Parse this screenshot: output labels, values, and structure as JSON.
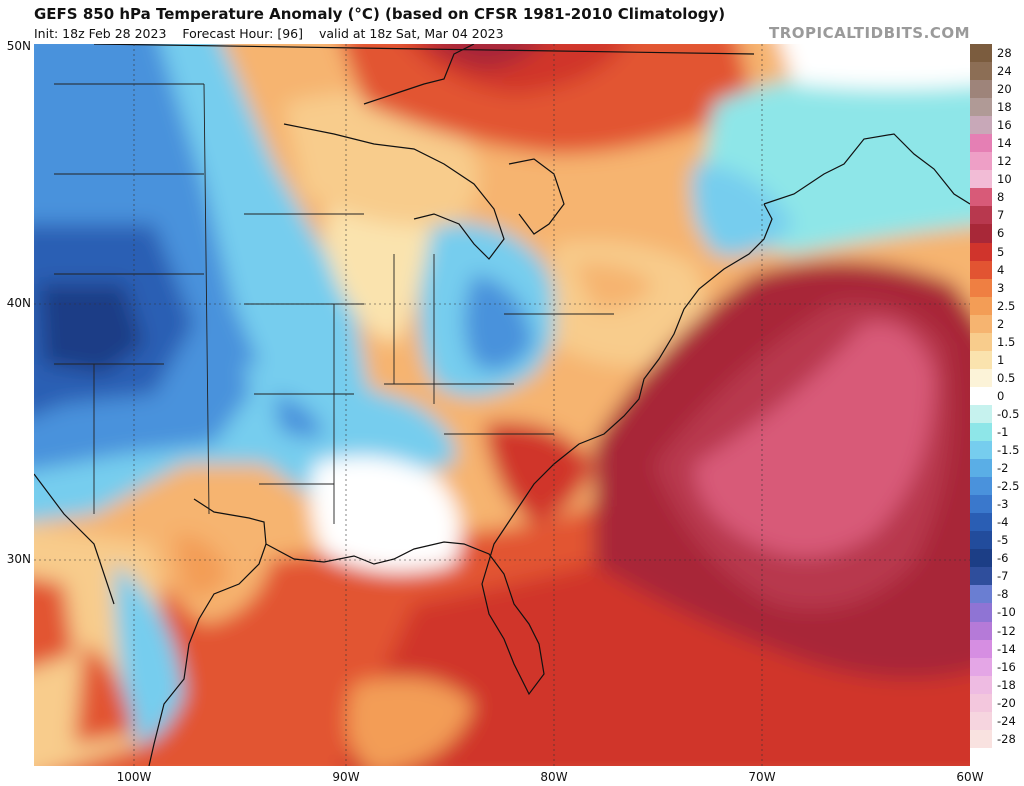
{
  "header": {
    "title": "GEFS 850 hPa Temperature Anomaly (°C) (based on CFSR 1981-2010 Climatology)",
    "init": "Init: 18z Feb 28 2023",
    "forecast_hour": "Forecast Hour: [96]",
    "valid": "valid at 18z Sat, Mar 04 2023",
    "brand": "TROPICALTIDBITS.COM"
  },
  "axes": {
    "lat_labels": [
      "50N",
      "40N",
      "30N"
    ],
    "lon_labels": [
      "100W",
      "90W",
      "80W",
      "70W",
      "60W"
    ]
  },
  "legend": {
    "entries": [
      {
        "label": "28",
        "color": "#7b5c3e"
      },
      {
        "label": "24",
        "color": "#8c6e55"
      },
      {
        "label": "20",
        "color": "#9e847a"
      },
      {
        "label": "18",
        "color": "#b09a96"
      },
      {
        "label": "16",
        "color": "#c8a8b8"
      },
      {
        "label": "14",
        "color": "#e57fb4"
      },
      {
        "label": "12",
        "color": "#ee9fc6"
      },
      {
        "label": "10",
        "color": "#f2bcd6"
      },
      {
        "label": "8",
        "color": "#d85a78"
      },
      {
        "label": "7",
        "color": "#b8384e"
      },
      {
        "label": "6",
        "color": "#a82838"
      },
      {
        "label": "5",
        "color": "#d0342c"
      },
      {
        "label": "4",
        "color": "#e25432"
      },
      {
        "label": "3",
        "color": "#ef7f42"
      },
      {
        "label": "2.5",
        "color": "#f39d56"
      },
      {
        "label": "2",
        "color": "#f6b470"
      },
      {
        "label": "1.5",
        "color": "#f8cc8c"
      },
      {
        "label": "1",
        "color": "#fae3ae"
      },
      {
        "label": "0.5",
        "color": "#fcf3d8"
      },
      {
        "label": "0",
        "color": "#ffffff"
      },
      {
        "label": "-0.5",
        "color": "#c6f2ee"
      },
      {
        "label": "-1",
        "color": "#8ee6e8"
      },
      {
        "label": "-1.5",
        "color": "#76cdee"
      },
      {
        "label": "-2",
        "color": "#5aaee6"
      },
      {
        "label": "-2.5",
        "color": "#4a92dc"
      },
      {
        "label": "-3",
        "color": "#3a78cc"
      },
      {
        "label": "-4",
        "color": "#2a5eb4"
      },
      {
        "label": "-5",
        "color": "#224c9c"
      },
      {
        "label": "-6",
        "color": "#1c3e86"
      },
      {
        "label": "-7",
        "color": "#2f4e9c"
      },
      {
        "label": "-8",
        "color": "#6a7ed2"
      },
      {
        "label": "-10",
        "color": "#8f74d4"
      },
      {
        "label": "-12",
        "color": "#b57ad8"
      },
      {
        "label": "-14",
        "color": "#d68ee2"
      },
      {
        "label": "-16",
        "color": "#e4a6e6"
      },
      {
        "label": "-18",
        "color": "#eebbe2"
      },
      {
        "label": "-20",
        "color": "#f3c7dd"
      },
      {
        "label": "-24",
        "color": "#f6d5df"
      },
      {
        "label": "-28",
        "color": "#f9e2e0"
      }
    ]
  }
}
